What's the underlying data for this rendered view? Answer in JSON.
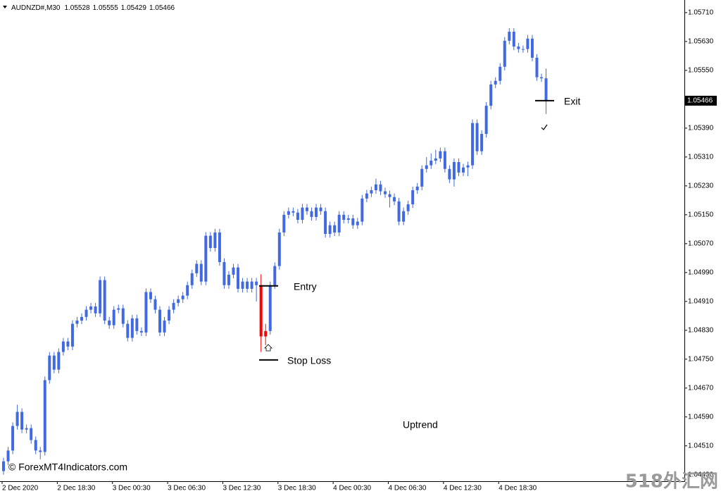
{
  "chart_data": {
    "type": "candlestick",
    "symbol": "AUDNZD#,M30",
    "categories": [
      "2 Dec 2020",
      null,
      null,
      null,
      null,
      null,
      null,
      null,
      null,
      null,
      null,
      null,
      "2 Dec 18:30",
      null,
      null,
      null,
      null,
      null,
      null,
      null,
      null,
      null,
      null,
      null,
      "3 Dec 00:30",
      null,
      null,
      null,
      null,
      null,
      null,
      null,
      null,
      null,
      null,
      null,
      "3 Dec 06:30",
      null,
      null,
      null,
      null,
      null,
      null,
      null,
      null,
      null,
      null,
      null,
      "3 Dec 12:30",
      null,
      null,
      null,
      null,
      null,
      null,
      null,
      null,
      null,
      null,
      null,
      "3 Dec 18:30",
      null,
      null,
      null,
      null,
      null,
      null,
      null,
      null,
      null,
      null,
      null,
      "4 Dec 00:30",
      null,
      null,
      null,
      null,
      null,
      null,
      null,
      null,
      null,
      null,
      null,
      "4 Dec 06:30",
      null,
      null,
      null,
      null,
      null,
      null,
      null,
      null,
      null,
      null,
      null,
      "4 Dec 12:30",
      null,
      null,
      null,
      null,
      null,
      null,
      null,
      null,
      null,
      null,
      null,
      "4 Dec 18:30",
      null,
      null,
      null,
      null,
      null,
      null,
      null,
      null,
      null,
      null
    ],
    "open": [
      1.0444,
      1.04467,
      1.04497,
      1.04565,
      1.04604,
      1.04555,
      1.04559,
      1.04526,
      1.04497,
      1.04493,
      1.04692,
      1.0476,
      1.04721,
      1.0477,
      1.04799,
      1.04785,
      1.04848,
      1.04857,
      1.04867,
      1.04887,
      1.04896,
      1.04877,
      1.04969,
      1.04857,
      1.04844,
      1.04887,
      1.04891,
      1.04848,
      1.04809,
      1.04863,
      1.04828,
      1.04824,
      1.04936,
      1.04916,
      1.04887,
      1.04824,
      1.04857,
      1.04887,
      1.04906,
      1.04916,
      1.04926,
      1.04955,
      1.04988,
      1.05014,
      1.04965,
      1.05092,
      1.05058,
      1.05101,
      1.05019,
      1.04955,
      1.04984,
      1.05004,
      1.04945,
      1.04965,
      1.04945,
      1.04965,
      1.04955,
      1.04813,
      1.04828,
      1.04955,
      1.05008,
      1.05101,
      1.0515,
      1.0516,
      1.05156,
      1.05136,
      1.0517,
      1.0516,
      1.05144,
      1.0517,
      1.0516,
      1.05097,
      1.05121,
      1.05101,
      1.0515,
      1.05136,
      1.0514,
      1.05121,
      1.05131,
      1.05195,
      1.05209,
      1.05218,
      1.05234,
      1.05215,
      1.05207,
      1.05199,
      1.05187,
      1.05131,
      1.0516,
      1.05179,
      1.05218,
      1.05228,
      1.05277,
      1.05287,
      1.053,
      1.05306,
      1.05326,
      1.05277,
      1.05248,
      1.05296,
      1.05267,
      1.05281,
      1.05287,
      1.05404,
      1.05326,
      1.05374,
      1.05452,
      1.05511,
      1.05521,
      1.0556,
      1.05632,
      1.05657,
      1.05616,
      1.05609,
      1.05609,
      1.05638,
      1.05585,
      1.05531,
      1.05528
    ],
    "high": [
      1.04477,
      1.04507,
      1.04575,
      1.04624,
      1.04614,
      1.04569,
      1.04569,
      1.04536,
      1.04507,
      1.04702,
      1.0477,
      1.0477,
      1.0478,
      1.04809,
      1.04809,
      1.04858,
      1.04867,
      1.04877,
      1.04897,
      1.04906,
      1.04906,
      1.04979,
      1.04979,
      1.04867,
      1.04897,
      1.04901,
      1.04901,
      1.04858,
      1.04873,
      1.04873,
      1.04838,
      1.04946,
      1.04946,
      1.04926,
      1.04897,
      1.04867,
      1.04897,
      1.04916,
      1.04926,
      1.04936,
      1.04965,
      1.04998,
      1.05024,
      1.05024,
      1.05102,
      1.05102,
      1.05111,
      1.05111,
      1.05029,
      1.04994,
      1.05014,
      1.05014,
      1.04975,
      1.04975,
      1.04975,
      1.04975,
      1.04985,
      1.04848,
      1.04965,
      1.05018,
      1.05111,
      1.0516,
      1.0517,
      1.0517,
      1.05166,
      1.0518,
      1.0518,
      1.0517,
      1.0518,
      1.0518,
      1.0517,
      1.05131,
      1.05131,
      1.0516,
      1.0516,
      1.0515,
      1.0515,
      1.05141,
      1.05205,
      1.05219,
      1.05228,
      1.0525,
      1.05244,
      1.05225,
      1.05217,
      1.05209,
      1.05197,
      1.0517,
      1.05189,
      1.05228,
      1.05238,
      1.05287,
      1.0531,
      1.0532,
      1.0533,
      1.05336,
      1.05336,
      1.05287,
      1.05306,
      1.05306,
      1.05291,
      1.05297,
      1.05414,
      1.05414,
      1.05384,
      1.05462,
      1.05521,
      1.05531,
      1.0557,
      1.05642,
      1.05667,
      1.05667,
      1.05626,
      1.05619,
      1.05648,
      1.05648,
      1.05595,
      1.05541,
      1.05555
    ],
    "low": [
      1.0443,
      1.04457,
      1.04487,
      1.04555,
      1.04545,
      1.04545,
      1.04516,
      1.04487,
      1.04473,
      1.04483,
      1.04682,
      1.04711,
      1.04711,
      1.0476,
      1.04775,
      1.04775,
      1.04838,
      1.04847,
      1.04857,
      1.04877,
      1.04867,
      1.04867,
      1.04847,
      1.04834,
      1.04834,
      1.04877,
      1.04838,
      1.04799,
      1.04799,
      1.04818,
      1.04814,
      1.04814,
      1.04906,
      1.04877,
      1.04814,
      1.04814,
      1.04847,
      1.04877,
      1.04896,
      1.04906,
      1.04916,
      1.04945,
      1.04978,
      1.04955,
      1.04955,
      1.05048,
      1.05048,
      1.05009,
      1.04945,
      1.04945,
      1.04974,
      1.04935,
      1.04935,
      1.04935,
      1.04935,
      1.0491,
      1.0477,
      1.04789,
      1.04818,
      1.04945,
      1.04998,
      1.05091,
      1.0514,
      1.05146,
      1.05126,
      1.05126,
      1.0515,
      1.05134,
      1.05134,
      1.0515,
      1.05087,
      1.05087,
      1.05091,
      1.05091,
      1.05126,
      1.05126,
      1.05111,
      1.05111,
      1.05121,
      1.05185,
      1.05199,
      1.05208,
      1.05205,
      1.05197,
      1.0517,
      1.05177,
      1.05121,
      1.05121,
      1.0515,
      1.05169,
      1.05208,
      1.05218,
      1.05267,
      1.05277,
      1.0529,
      1.05296,
      1.05267,
      1.05238,
      1.05228,
      1.05257,
      1.05257,
      1.05257,
      1.05277,
      1.05316,
      1.05316,
      1.05364,
      1.05442,
      1.05501,
      1.05511,
      1.0555,
      1.05622,
      1.05606,
      1.05599,
      1.05599,
      1.05599,
      1.05575,
      1.05521,
      1.05518,
      1.05429
    ],
    "close": [
      1.04467,
      1.04497,
      1.04565,
      1.04604,
      1.04555,
      1.04559,
      1.04526,
      1.04497,
      1.04493,
      1.04692,
      1.0476,
      1.04721,
      1.0477,
      1.04799,
      1.04785,
      1.04848,
      1.04857,
      1.04867,
      1.04887,
      1.04896,
      1.04877,
      1.04969,
      1.04857,
      1.04844,
      1.04887,
      1.04891,
      1.04848,
      1.04809,
      1.04863,
      1.04828,
      1.04824,
      1.04936,
      1.04916,
      1.04887,
      1.04824,
      1.04857,
      1.04887,
      1.04906,
      1.04916,
      1.04926,
      1.04955,
      1.04988,
      1.05014,
      1.04965,
      1.05092,
      1.05058,
      1.05101,
      1.05019,
      1.04955,
      1.04984,
      1.05004,
      1.04945,
      1.04965,
      1.04945,
      1.04965,
      1.04955,
      1.04813,
      1.04828,
      1.04955,
      1.05008,
      1.05101,
      1.0515,
      1.0516,
      1.05156,
      1.05136,
      1.0517,
      1.0516,
      1.05144,
      1.0517,
      1.0516,
      1.05097,
      1.05121,
      1.05101,
      1.0515,
      1.05136,
      1.0514,
      1.05121,
      1.05131,
      1.05195,
      1.05209,
      1.05218,
      1.05234,
      1.05215,
      1.05207,
      1.05199,
      1.05187,
      1.05131,
      1.0516,
      1.05179,
      1.05218,
      1.05228,
      1.05277,
      1.05287,
      1.053,
      1.05306,
      1.05326,
      1.05277,
      1.05248,
      1.05296,
      1.05267,
      1.05281,
      1.05287,
      1.05404,
      1.05326,
      1.05374,
      1.05452,
      1.05511,
      1.05521,
      1.0556,
      1.05632,
      1.05657,
      1.05616,
      1.05609,
      1.05609,
      1.05638,
      1.05585,
      1.05531,
      1.05528,
      1.05466
    ],
    "color": "#4169e1",
    "highlight_color": "#ff0000",
    "highlight_indices": [
      56,
      57
    ],
    "ylim": [
      1.04412,
      1.05741
    ],
    "yticks": [
      {
        "value": 1.0571,
        "label": "1.05710"
      },
      {
        "value": 1.0563,
        "label": "1.05630"
      },
      {
        "value": 1.0555,
        "label": "1.05550"
      },
      {
        "value": 1.0539,
        "label": "1.05390"
      },
      {
        "value": 1.0531,
        "label": "1.05310"
      },
      {
        "value": 1.0523,
        "label": "1.05230"
      },
      {
        "value": 1.0515,
        "label": "1.05150"
      },
      {
        "value": 1.0507,
        "label": "1.05070"
      },
      {
        "value": 1.0499,
        "label": "1.04990"
      },
      {
        "value": 1.0491,
        "label": "1.04910"
      },
      {
        "value": 1.0483,
        "label": "1.04830"
      },
      {
        "value": 1.0475,
        "label": "1.04750"
      },
      {
        "value": 1.0467,
        "label": "1.04670"
      },
      {
        "value": 1.0459,
        "label": "1.04590"
      },
      {
        "value": 1.0451,
        "label": "1.04510"
      },
      {
        "value": 1.0443,
        "label": "1.04430"
      }
    ],
    "annotations": [
      {
        "label": "Entry",
        "value": 1.04953
      },
      {
        "label": "Stop Loss",
        "value": 1.04748
      },
      {
        "label": "Exit",
        "value": 1.05466
      }
    ],
    "trend_label": "Uptrend",
    "copyright": "© ForexMT4Indicators.com",
    "watermark": "518外汇网"
  }
}
